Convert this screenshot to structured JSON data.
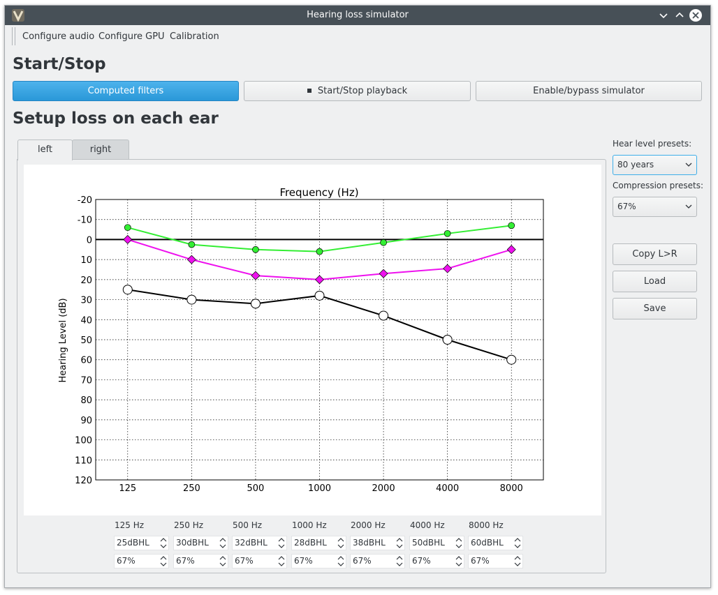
{
  "window": {
    "title": "Hearing loss simulator"
  },
  "menu": {
    "items": [
      "Configure audio",
      "Configure GPU",
      "Calibration"
    ]
  },
  "sections": {
    "start_stop": "Start/Stop",
    "setup": "Setup loss on each ear"
  },
  "buttons": {
    "computed_filters": "Computed filters",
    "start_stop_playback": "Start/Stop playback",
    "enable_bypass": "Enable/bypass simulator"
  },
  "tabs": [
    {
      "label": "left",
      "active": true
    },
    {
      "label": "right",
      "active": false
    }
  ],
  "side": {
    "hear_level_label": "Hear level presets:",
    "hear_level_value": "80 years",
    "compression_label": "Compression presets:",
    "compression_value": "67%",
    "copy_label": "Copy L>R",
    "load_label": "Load",
    "save_label": "Save"
  },
  "freq_columns": [
    {
      "hz": "125 Hz",
      "hl": "25dBHL",
      "comp": "67%"
    },
    {
      "hz": "250 Hz",
      "hl": "30dBHL",
      "comp": "67%"
    },
    {
      "hz": "500 Hz",
      "hl": "32dBHL",
      "comp": "67%"
    },
    {
      "hz": "1000 Hz",
      "hl": "28dBHL",
      "comp": "67%"
    },
    {
      "hz": "2000 Hz",
      "hl": "38dBHL",
      "comp": "67%"
    },
    {
      "hz": "4000 Hz",
      "hl": "50dBHL",
      "comp": "67%"
    },
    {
      "hz": "8000 Hz",
      "hl": "60dBHL",
      "comp": "67%"
    }
  ],
  "colors": {
    "accent": "#3daee9",
    "titlebar": "#475057",
    "green": "#33ee33",
    "magenta": "#ee11ee",
    "black": "#000000"
  },
  "chart_data": {
    "type": "line",
    "title": "Frequency (Hz)",
    "xlabel": "",
    "ylabel": "Hearing Level (dB)",
    "categories": [
      "125",
      "250",
      "500",
      "1000",
      "2000",
      "4000",
      "8000"
    ],
    "ylim": [
      -20,
      120
    ],
    "y_inverted": true,
    "y_ticks": [
      -20,
      -10,
      0,
      10,
      20,
      30,
      40,
      50,
      60,
      70,
      80,
      90,
      100,
      110,
      120
    ],
    "grid": true,
    "reference_line": 0,
    "series": [
      {
        "values": [
          -6,
          2.5,
          5,
          6,
          1.5,
          -3,
          -7
        ],
        "color": "#33ee33",
        "marker": "circle"
      },
      {
        "values": [
          0,
          10,
          18,
          20,
          17,
          14.5,
          5
        ],
        "color": "#ee11ee",
        "marker": "diamond"
      },
      {
        "values": [
          25,
          30,
          32,
          28,
          38,
          50,
          60
        ],
        "color": "#000000",
        "marker": "open-circle"
      }
    ]
  }
}
